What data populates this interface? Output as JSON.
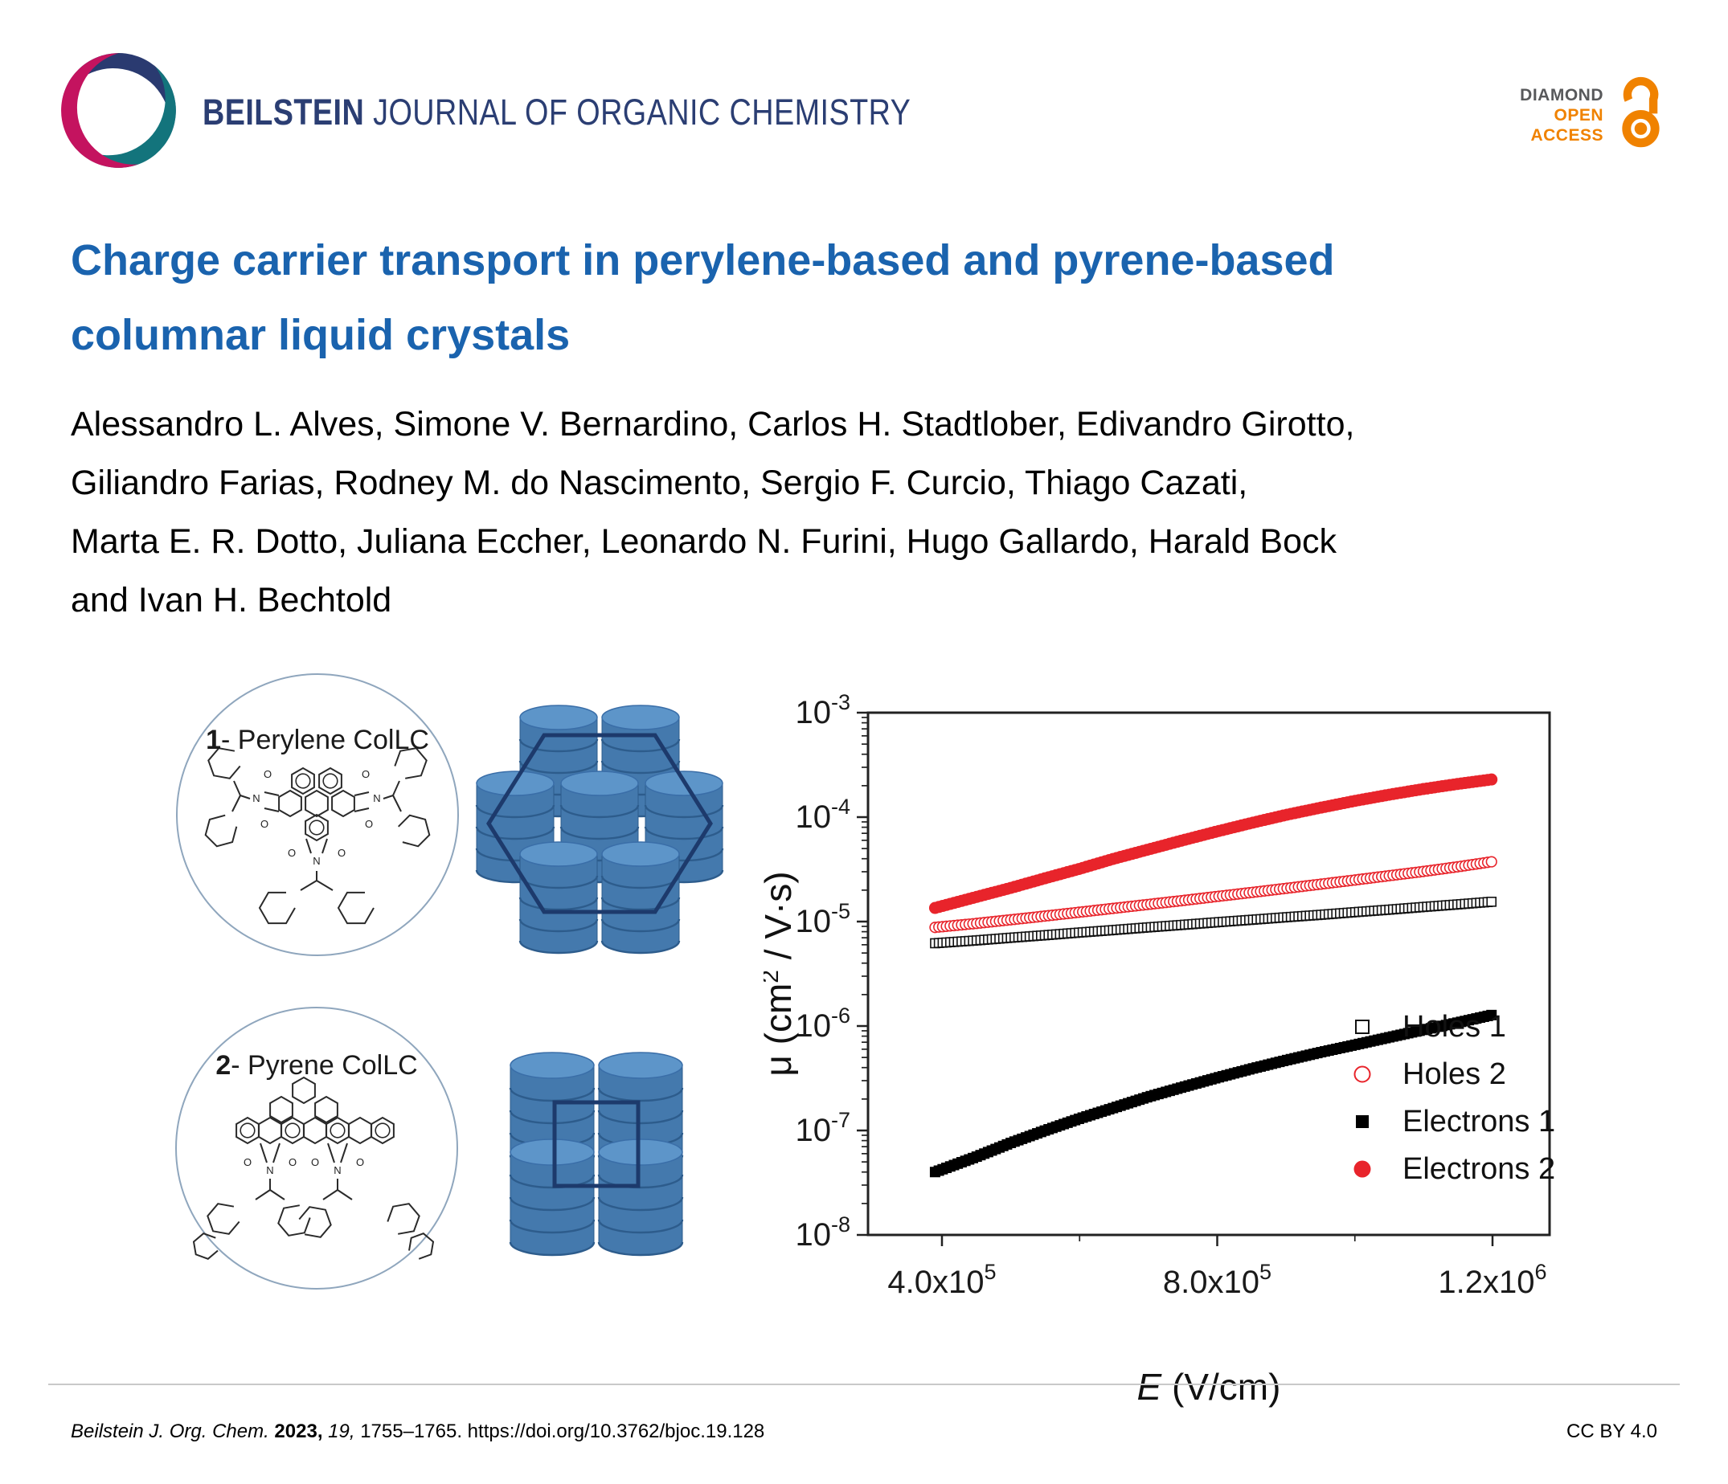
{
  "header": {
    "journal_name_bold": "BEILSTEIN",
    "journal_name_rest": " JOURNAL OF ORGANIC CHEMISTRY",
    "badge": {
      "diamond": "DIAMOND",
      "open": "OPEN",
      "access": "ACCESS"
    }
  },
  "article": {
    "title_lines": [
      "Charge carrier transport in perylene-based and pyrene-based",
      "columnar liquid crystals"
    ],
    "author_lines": [
      "Alessandro L. Alves, Simone V. Bernardino, Carlos H. Stadtlober, Edivandro Girotto,",
      "Giliandro Farias, Rodney M. do Nascimento, Sergio F. Curcio, Thiago Cazati,",
      "Marta E. R. Dotto, Juliana Eccher, Leonardo N. Furini, Hugo Gallardo, Harald Bock",
      "and Ivan H. Bechtold"
    ]
  },
  "figure": {
    "molecule1": {
      "num": "1",
      "rest": "- Perylene ColLC"
    },
    "molecule2": {
      "num": "2",
      "rest": "- Pyrene ColLC"
    }
  },
  "chart_data": {
    "type": "scatter",
    "title": "",
    "xlabel_italic": "E",
    "xlabel_rest": " (V/cm)",
    "ylabel_pre": "μ (cm",
    "ylabel_sup": "2",
    "ylabel_post": " / V·s)",
    "x_axis": {
      "scale": "linear",
      "min": 293000,
      "max": 1283000,
      "ticks": [
        {
          "value": 400000,
          "mantissa": "4.0x10",
          "exp": "5"
        },
        {
          "value": 800000,
          "mantissa": "8.0x10",
          "exp": "5"
        },
        {
          "value": 1200000,
          "mantissa": "1.2x10",
          "exp": "6"
        }
      ],
      "minor_ticks": [
        600000,
        1000000
      ]
    },
    "y_axis": {
      "scale": "log",
      "min_exp": -8,
      "max_exp": -3,
      "tick_base": "10",
      "tick_exponents": [
        "-3",
        "-4",
        "-5",
        "-6",
        "-7",
        "-8"
      ],
      "log_minor_ticks": true
    },
    "legend": {
      "position": "lower-right",
      "frame": false
    },
    "series": [
      {
        "name": "Holes 1",
        "marker": "square-open",
        "color": "#111111",
        "x": [
          390000,
          450000,
          500000,
          550000,
          600000,
          650000,
          700000,
          750000,
          800000,
          850000,
          900000,
          950000,
          1000000,
          1050000,
          1100000,
          1150000,
          1200000
        ],
        "y": [
          6.2e-06,
          6.6e-06,
          7e-06,
          7.4e-06,
          7.85e-06,
          8.3e-06,
          8.8e-06,
          9.3e-06,
          9.85e-06,
          1.04e-05,
          1.1e-05,
          1.16e-05,
          1.23e-05,
          1.3e-05,
          1.38e-05,
          1.46e-05,
          1.55e-05
        ]
      },
      {
        "name": "Holes 2",
        "marker": "circle-open",
        "color": "#e8242b",
        "x": [
          390000,
          450000,
          500000,
          550000,
          600000,
          650000,
          700000,
          750000,
          800000,
          850000,
          900000,
          950000,
          1000000,
          1050000,
          1100000,
          1150000,
          1200000
        ],
        "y": [
          8.8e-06,
          9.6e-06,
          1.04e-05,
          1.13e-05,
          1.23e-05,
          1.34e-05,
          1.46e-05,
          1.59e-05,
          1.74e-05,
          1.9e-05,
          2.08e-05,
          2.28e-05,
          2.5e-05,
          2.75e-05,
          3.02e-05,
          3.35e-05,
          3.75e-05
        ]
      },
      {
        "name": "Electrons 1",
        "marker": "square-filled",
        "color": "#000000",
        "x": [
          390000,
          450000,
          500000,
          550000,
          600000,
          650000,
          700000,
          750000,
          800000,
          850000,
          900000,
          950000,
          1000000,
          1050000,
          1100000,
          1150000,
          1200000
        ],
        "y": [
          4e-08,
          5.6e-08,
          7.6e-08,
          1e-07,
          1.3e-07,
          1.65e-07,
          2.1e-07,
          2.6e-07,
          3.2e-07,
          3.9e-07,
          4.7e-07,
          5.6e-07,
          6.6e-07,
          7.8e-07,
          9.2e-07,
          1.08e-06,
          1.28e-06
        ]
      },
      {
        "name": "Electrons 2",
        "marker": "circle-filled",
        "color": "#e8242b",
        "x": [
          390000,
          450000,
          500000,
          550000,
          600000,
          650000,
          700000,
          750000,
          800000,
          850000,
          900000,
          950000,
          1000000,
          1050000,
          1100000,
          1150000,
          1200000
        ],
        "y": [
          1.35e-05,
          1.72e-05,
          2.1e-05,
          2.6e-05,
          3.2e-05,
          4e-05,
          4.9e-05,
          6e-05,
          7.3e-05,
          8.8e-05,
          0.000105,
          0.000123,
          0.000143,
          0.000164,
          0.000186,
          0.000208,
          0.00023
        ]
      }
    ]
  },
  "footer": {
    "journal_abbrev": "Beilstein J. Org. Chem.",
    "year": "2023,",
    "volume": "19,",
    "pages": "1755–1765.",
    "doi": "https://doi.org/10.3762/bjoc.19.128",
    "license": "CC BY 4.0"
  },
  "colors": {
    "title_blue": "#1a63ae",
    "journal_navy": "#2b3e73",
    "logo_navy": "#2a3a70",
    "logo_teal": "#13747c",
    "logo_magenta": "#c4135f",
    "oa_orange": "#f08200",
    "badge_gray": "#58595b",
    "disc_body": "#4479ad",
    "disc_top": "#5d95c9",
    "disc_seam": "#2d5c8c",
    "lattice_outline": "#1d3a6c",
    "series_red": "#e8242b",
    "series_black": "#000000"
  }
}
